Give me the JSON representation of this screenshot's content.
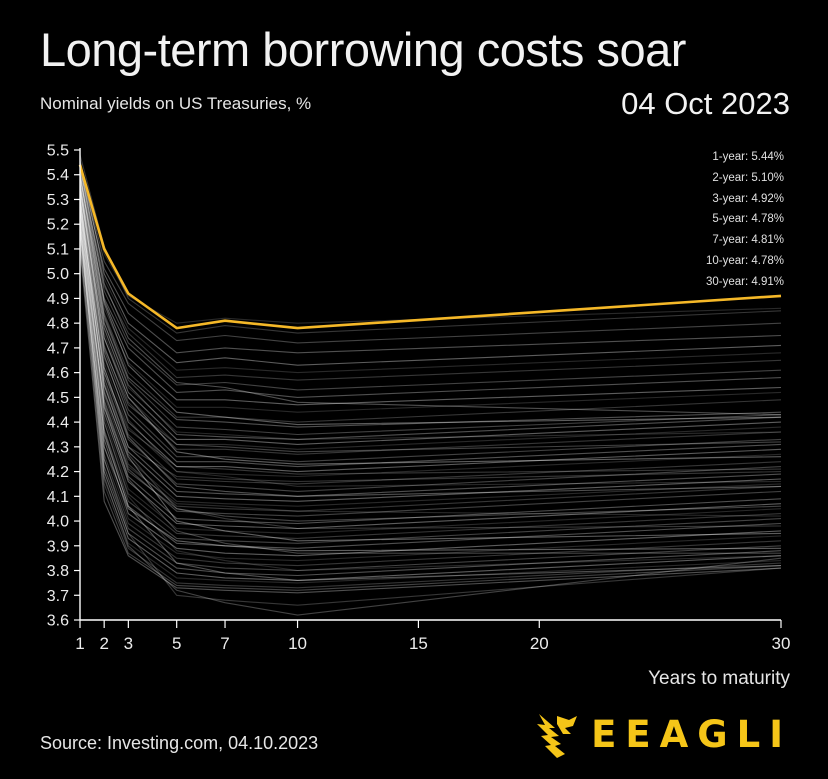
{
  "title": "Long-term borrowing costs soar",
  "subtitle": "Nominal yields on US Treasuries, %",
  "date": "04 Oct 2023",
  "source": "Source: Investing.com, 04.10.2023",
  "brand": {
    "name": "EEAGLI",
    "color": "#f5c518"
  },
  "chart_data": {
    "type": "line",
    "xlabel": "Years to maturity",
    "ylabel": "",
    "x_ticks": [
      1,
      2,
      3,
      5,
      7,
      10,
      15,
      20,
      30
    ],
    "x_tick_labels": [
      "1",
      "2",
      "3",
      "5",
      "7",
      "10",
      "15",
      "20",
      "30"
    ],
    "xlim": [
      1,
      30
    ],
    "y_ticks": [
      3.6,
      3.7,
      3.8,
      3.9,
      4.0,
      4.1,
      4.2,
      4.3,
      4.4,
      4.5,
      4.6,
      4.7,
      4.8,
      4.9,
      5.0,
      5.1,
      5.2,
      5.3,
      5.4,
      5.5
    ],
    "y_tick_labels": [
      "3.6",
      "3.7",
      "3.8",
      "3.9",
      "4.0",
      "4.1",
      "4.2",
      "4.3",
      "4.4",
      "4.5",
      "4.6",
      "4.7",
      "4.8",
      "4.9",
      "5.0",
      "5.1",
      "5.2",
      "5.3",
      "5.4",
      "5.5"
    ],
    "ylim": [
      3.6,
      5.5
    ],
    "grid": false,
    "maturities": [
      1,
      2,
      3,
      5,
      7,
      10,
      30
    ],
    "highlight": {
      "color": "#f5b828",
      "values": [
        5.44,
        5.1,
        4.92,
        4.78,
        4.81,
        4.78,
        4.91
      ]
    },
    "background_curves_color": "#ffffff",
    "background_curves": [
      [
        5.45,
        5.08,
        4.91,
        4.8,
        4.82,
        4.8,
        4.86
      ],
      [
        5.48,
        5.11,
        4.9,
        4.76,
        4.79,
        4.76,
        4.85
      ],
      [
        5.44,
        5.05,
        4.88,
        4.73,
        4.75,
        4.72,
        4.8
      ],
      [
        5.43,
        5.02,
        4.84,
        4.68,
        4.7,
        4.68,
        4.75
      ],
      [
        5.46,
        5.0,
        4.8,
        4.64,
        4.66,
        4.63,
        4.71
      ],
      [
        5.42,
        4.98,
        4.78,
        4.61,
        4.62,
        4.6,
        4.68
      ],
      [
        5.41,
        4.95,
        4.76,
        4.58,
        4.59,
        4.57,
        4.65
      ],
      [
        5.45,
        4.93,
        4.72,
        4.55,
        4.56,
        4.53,
        4.61
      ],
      [
        5.4,
        4.9,
        4.7,
        4.52,
        4.53,
        4.5,
        4.58
      ],
      [
        5.44,
        4.89,
        4.66,
        4.49,
        4.49,
        4.47,
        4.54
      ],
      [
        5.39,
        4.86,
        4.64,
        4.46,
        4.46,
        4.44,
        4.52
      ],
      [
        5.42,
        4.84,
        4.6,
        4.42,
        4.42,
        4.4,
        4.49
      ],
      [
        5.38,
        4.82,
        4.57,
        4.38,
        4.37,
        4.35,
        4.43
      ],
      [
        5.41,
        4.8,
        4.55,
        4.35,
        4.34,
        4.33,
        4.42
      ],
      [
        5.36,
        4.78,
        4.52,
        4.33,
        4.33,
        4.31,
        4.4
      ],
      [
        5.4,
        4.76,
        4.5,
        4.31,
        4.31,
        4.29,
        4.38
      ],
      [
        5.35,
        4.74,
        4.48,
        4.29,
        4.29,
        4.27,
        4.36
      ],
      [
        5.38,
        4.71,
        4.45,
        4.26,
        4.26,
        4.24,
        4.33
      ],
      [
        5.34,
        4.69,
        4.43,
        4.24,
        4.24,
        4.22,
        4.31
      ],
      [
        5.37,
        4.67,
        4.4,
        4.22,
        4.22,
        4.2,
        4.29
      ],
      [
        5.33,
        4.64,
        4.38,
        4.2,
        4.19,
        4.18,
        4.27
      ],
      [
        5.36,
        4.62,
        4.35,
        4.17,
        4.16,
        4.15,
        4.24
      ],
      [
        5.31,
        4.6,
        4.33,
        4.15,
        4.14,
        4.12,
        4.22
      ],
      [
        5.34,
        4.58,
        4.3,
        4.12,
        4.11,
        4.1,
        4.19
      ],
      [
        5.3,
        4.55,
        4.28,
        4.1,
        4.09,
        4.08,
        4.17
      ],
      [
        5.33,
        4.53,
        4.25,
        4.08,
        4.07,
        4.06,
        4.15
      ],
      [
        5.29,
        4.51,
        4.23,
        4.06,
        4.05,
        4.04,
        4.14
      ],
      [
        5.32,
        4.49,
        4.21,
        4.04,
        4.03,
        4.02,
        4.12
      ],
      [
        5.27,
        4.46,
        4.18,
        4.01,
        4.0,
        3.99,
        4.09
      ],
      [
        5.3,
        4.44,
        4.16,
        3.99,
        3.98,
        3.97,
        4.07
      ],
      [
        5.26,
        4.42,
        4.13,
        3.97,
        3.96,
        3.95,
        4.05
      ],
      [
        5.29,
        4.4,
        4.11,
        3.95,
        3.94,
        3.93,
        4.03
      ],
      [
        5.24,
        4.37,
        4.08,
        3.93,
        3.92,
        3.91,
        4.01
      ],
      [
        5.27,
        4.35,
        4.06,
        3.91,
        3.9,
        3.89,
        3.99
      ],
      [
        5.22,
        4.33,
        4.03,
        3.89,
        3.87,
        3.86,
        3.96
      ],
      [
        5.25,
        4.3,
        4.01,
        3.87,
        3.85,
        3.84,
        3.94
      ],
      [
        5.2,
        4.27,
        3.99,
        3.85,
        3.83,
        3.82,
        3.92
      ],
      [
        5.23,
        4.25,
        3.97,
        3.83,
        3.81,
        3.8,
        3.9
      ],
      [
        5.18,
        4.22,
        3.95,
        3.81,
        3.79,
        3.78,
        3.88
      ],
      [
        5.21,
        4.2,
        3.93,
        3.79,
        3.77,
        3.76,
        3.86
      ],
      [
        5.16,
        4.17,
        3.91,
        3.77,
        3.76,
        3.75,
        3.84
      ],
      [
        5.19,
        4.15,
        3.89,
        3.75,
        3.74,
        3.73,
        3.83
      ],
      [
        5.13,
        4.12,
        3.87,
        3.74,
        3.73,
        3.72,
        3.82
      ],
      [
        5.1,
        4.08,
        3.86,
        3.73,
        3.72,
        3.71,
        3.81
      ],
      [
        5.15,
        4.3,
        4.05,
        3.92,
        3.9,
        3.88,
        3.89
      ],
      [
        5.24,
        4.46,
        4.22,
        4.07,
        4.06,
        4.04,
        4.02
      ],
      [
        5.28,
        4.6,
        4.37,
        4.22,
        4.21,
        4.19,
        4.21
      ],
      [
        5.35,
        4.7,
        4.47,
        4.31,
        4.3,
        4.28,
        4.32
      ],
      [
        5.4,
        4.83,
        4.58,
        4.41,
        4.4,
        4.38,
        4.44
      ],
      [
        5.31,
        4.52,
        4.26,
        4.0,
        3.96,
        3.92,
        3.95
      ],
      [
        5.27,
        4.4,
        4.1,
        3.88,
        3.84,
        3.8,
        3.86
      ],
      [
        5.2,
        4.25,
        3.95,
        3.7,
        3.68,
        3.66,
        3.81
      ],
      [
        5.12,
        4.18,
        3.9,
        3.72,
        3.67,
        3.62,
        3.85
      ],
      [
        5.43,
        4.96,
        4.74,
        4.56,
        4.54,
        4.48,
        4.43
      ],
      [
        5.39,
        4.88,
        4.63,
        4.44,
        4.42,
        4.39,
        4.42
      ],
      [
        5.36,
        4.8,
        4.54,
        4.36,
        4.35,
        4.33,
        4.36
      ],
      [
        5.22,
        4.56,
        4.3,
        4.18,
        4.17,
        4.16,
        4.2
      ],
      [
        5.18,
        4.48,
        4.2,
        4.05,
        4.02,
        4.0,
        4.06
      ],
      [
        5.26,
        4.62,
        4.34,
        4.14,
        4.12,
        4.1,
        4.14
      ],
      [
        5.34,
        4.74,
        4.5,
        4.28,
        4.25,
        4.23,
        4.26
      ],
      [
        5.3,
        4.66,
        4.41,
        4.2,
        4.18,
        4.14,
        4.16
      ],
      [
        5.25,
        4.55,
        4.27,
        4.05,
        4.01,
        3.97,
        3.98
      ],
      [
        5.21,
        4.47,
        4.17,
        3.96,
        3.91,
        3.87,
        3.87
      ],
      [
        5.17,
        4.36,
        4.06,
        3.83,
        3.79,
        3.76,
        3.82
      ]
    ],
    "series": [
      {
        "name": "1-year",
        "label": "1-year: 5.44%"
      },
      {
        "name": "2-year",
        "label": "2-year: 5.10%"
      },
      {
        "name": "3-year",
        "label": "3-year: 4.92%"
      },
      {
        "name": "5-year",
        "label": "5-year: 4.78%"
      },
      {
        "name": "7-year",
        "label": "7-year: 4.81%"
      },
      {
        "name": "10-year",
        "label": "10-year: 4.78%"
      },
      {
        "name": "30-year",
        "label": "30-year: 4.91%"
      }
    ]
  }
}
